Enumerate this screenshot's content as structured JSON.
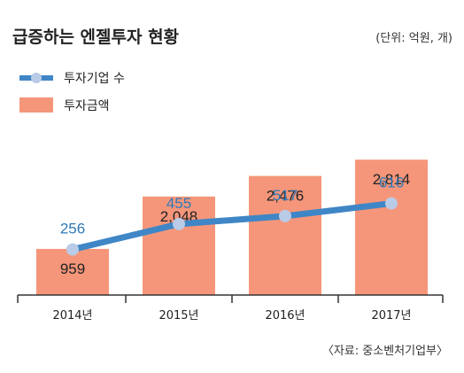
{
  "header": {
    "title": "급증하는 엔젤투자 현황",
    "unit": "(단위: 억원, 개)"
  },
  "footer": {
    "source": "〈자료: 중소벤처기업부〉"
  },
  "colors": {
    "bar": "#f5967a",
    "line": "#3f86c6",
    "marker": "#b9cbe6",
    "line_label": "#2f79b8"
  },
  "chart_data": {
    "type": "bar",
    "categories": [
      "2014년",
      "2015년",
      "2016년",
      "2017년"
    ],
    "series": [
      {
        "name": "투자금액",
        "type": "bar",
        "values": [
          959,
          2048,
          2476,
          2814
        ],
        "value_labels": [
          "959",
          "2,048",
          "2,476",
          "2,814"
        ]
      },
      {
        "name": "투자기업 수",
        "type": "line",
        "values": [
          256,
          455,
          517,
          616
        ],
        "value_labels": [
          "256",
          "455",
          "517",
          "616"
        ]
      }
    ],
    "legend": [
      {
        "name": "투자기업 수",
        "marker": "line"
      },
      {
        "name": "투자금액",
        "marker": "bar"
      }
    ],
    "legend_position": "top-left",
    "grid": false,
    "bar_ylim": [
      0,
      3500
    ],
    "line_ylim": [
      -100,
      800
    ]
  }
}
